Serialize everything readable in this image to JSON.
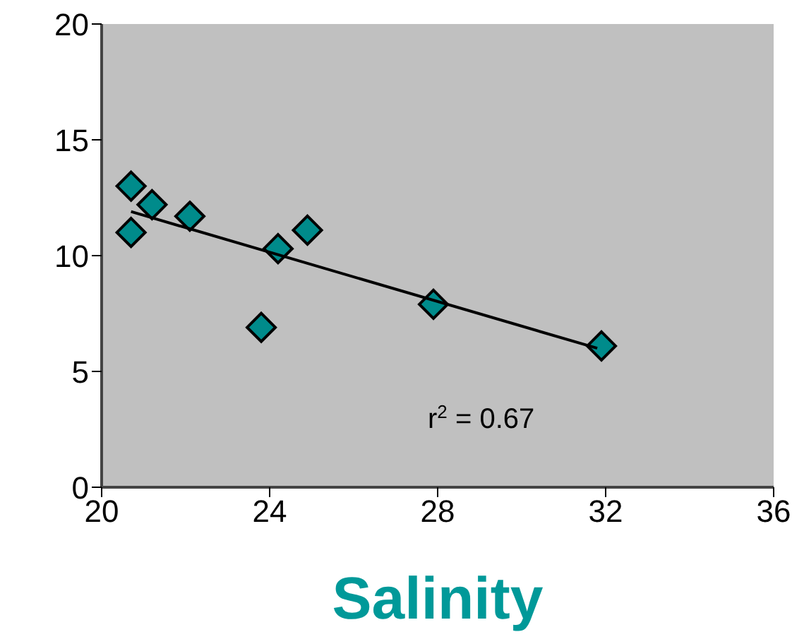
{
  "chart_data": {
    "type": "scatter",
    "xlabel": "Salinity",
    "xlim": [
      20,
      36
    ],
    "xticks": [
      20,
      24,
      28,
      32,
      36
    ],
    "ylim": [
      0,
      20
    ],
    "yticks": [
      0,
      5,
      10,
      15,
      20
    ],
    "grid": false,
    "legend": false,
    "annotations": [
      "r$^{2}$ = 0.67"
    ],
    "series": [
      {
        "color": "#008b8b",
        "marker": "diamond",
        "x": [
          20.7,
          20.7,
          21.2,
          22.1,
          23.8,
          24.2,
          24.9,
          27.9,
          31.9
        ],
        "values": [
          13.0,
          11.0,
          12.2,
          11.7,
          6.9,
          10.3,
          11.1,
          7.9,
          6.1
        ]
      },
      {
        "type": "line",
        "color": "#000000",
        "marker": "none",
        "line_style": "solid",
        "x": [
          20.7,
          31.8
        ],
        "values": [
          11.9,
          6.0
        ]
      }
    ]
  }
}
